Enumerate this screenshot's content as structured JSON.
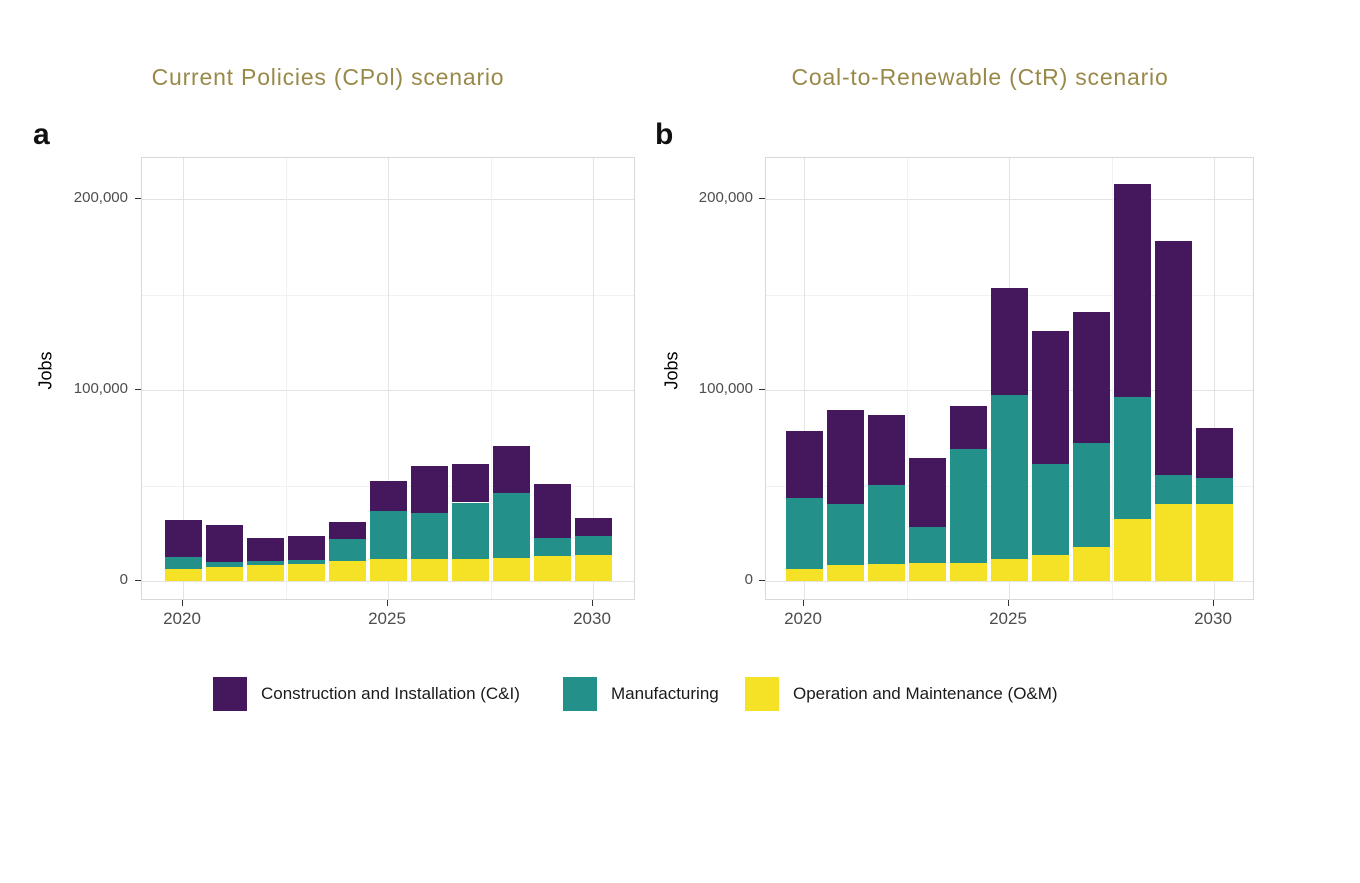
{
  "figure": {
    "y_axis_title": "Jobs"
  },
  "colors": {
    "construction": "#45175D",
    "manufacturing": "#23918A",
    "operation": "#F5E125",
    "title_text": "#998949",
    "axis_text": "#4D4D4D"
  },
  "legend": [
    {
      "label": "Construction and Installation (C&I)",
      "color": "#45175D"
    },
    {
      "label": "Manufacturing",
      "color": "#23918A"
    },
    {
      "label": "Operation and Maintenance (O&M)",
      "color": "#F5E125"
    }
  ],
  "chart_data": [
    {
      "id": "cpol",
      "type": "bar",
      "stacked": true,
      "panel_label": "a",
      "title": "Current Policies (CPol) scenario",
      "ylabel": "Jobs",
      "x": [
        2020,
        2021,
        2022,
        2023,
        2024,
        2025,
        2026,
        2027,
        2028,
        2029,
        2030
      ],
      "series": [
        {
          "name": "Construction and Installation (C&I)",
          "color": "#45175D",
          "values": [
            19200,
            19200,
            11900,
            12600,
            9100,
            15700,
            24500,
            20100,
            25000,
            28300,
            9600
          ]
        },
        {
          "name": "Manufacturing",
          "color": "#23918A",
          "values": [
            6400,
            2600,
            2300,
            1900,
            11400,
            25400,
            24100,
            29400,
            33600,
            9600,
            10100
          ]
        },
        {
          "name": "Operation and Maintenance (O&M)",
          "color": "#F5E125",
          "values": [
            6100,
            7300,
            8200,
            9100,
            10500,
            11400,
            11400,
            11700,
            12300,
            13100,
            13500
          ]
        }
      ],
      "totals": [
        31700,
        29100,
        22400,
        23600,
        31000,
        52500,
        60000,
        61200,
        70900,
        51000,
        33200
      ],
      "yticks": {
        "values": [
          0,
          100000,
          200000
        ],
        "labels": [
          "0",
          "100,000",
          "200,000"
        ]
      },
      "yminor": [
        50000,
        150000
      ],
      "xticks": {
        "values": [
          2020,
          2025,
          2030
        ],
        "labels": [
          "2020",
          "2025",
          "2030"
        ]
      },
      "xminor": [
        2022.5,
        2027.5
      ],
      "ylim": [
        0,
        221000
      ],
      "grid": true,
      "legend_position": "bottom"
    },
    {
      "id": "ctr",
      "type": "bar",
      "stacked": true,
      "panel_label": "b",
      "title": "Coal-to-Renewable (CtR) scenario",
      "ylabel": "Jobs",
      "x": [
        2020,
        2021,
        2022,
        2023,
        2024,
        2025,
        2026,
        2027,
        2028,
        2029,
        2030
      ],
      "series": [
        {
          "name": "Construction and Installation (C&I)",
          "color": "#45175D",
          "values": [
            35200,
            49300,
            37000,
            35800,
            22300,
            56100,
            70000,
            68800,
            111400,
            122900,
            26100
          ]
        },
        {
          "name": "Manufacturing",
          "color": "#23918A",
          "values": [
            37100,
            32200,
            41100,
            19100,
            59600,
            85600,
            47400,
            54400,
            63600,
            14900,
            13900
          ]
        },
        {
          "name": "Operation and Maintenance (O&M)",
          "color": "#F5E125",
          "values": [
            6400,
            8200,
            9000,
            9300,
            9600,
            11700,
            13600,
            17900,
            32600,
            40400,
            40100
          ]
        }
      ],
      "totals": [
        78700,
        89700,
        87100,
        64200,
        91500,
        153400,
        131000,
        141100,
        207600,
        178200,
        80100
      ],
      "yticks": {
        "values": [
          0,
          100000,
          200000
        ],
        "labels": [
          "0",
          "100,000",
          "200,000"
        ]
      },
      "yminor": [
        50000,
        150000
      ],
      "xticks": {
        "values": [
          2020,
          2025,
          2030
        ],
        "labels": [
          "2020",
          "2025",
          "2030"
        ]
      },
      "xminor": [
        2022.5,
        2027.5
      ],
      "ylim": [
        0,
        221000
      ],
      "grid": true,
      "legend_position": "bottom"
    }
  ]
}
